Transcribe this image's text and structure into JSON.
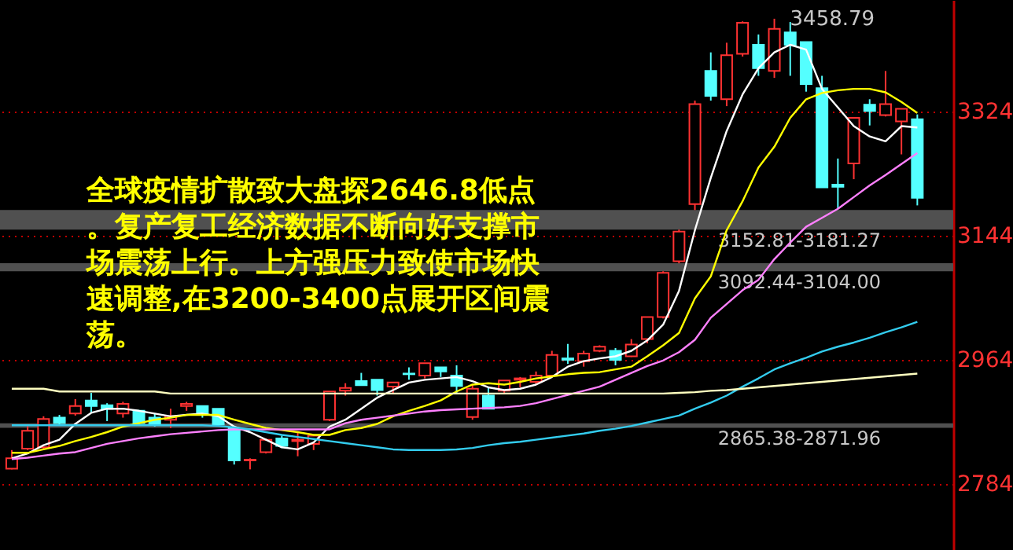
{
  "chart_data": {
    "type": "candlestick",
    "categories": [
      null,
      null,
      null,
      null,
      null,
      null,
      null,
      null,
      null,
      null,
      null,
      null,
      null,
      null,
      null,
      null,
      null,
      null,
      null,
      null,
      null,
      null,
      null,
      null,
      null,
      null,
      null,
      null,
      null,
      null,
      null,
      null,
      null,
      null,
      null,
      null,
      null,
      null,
      null,
      null,
      null,
      null,
      null,
      null,
      null,
      null,
      null,
      null,
      null,
      null,
      null,
      null,
      null,
      null,
      null,
      null,
      null,
      null
    ],
    "ohlc": [
      [
        2806,
        2833,
        2805,
        2821
      ],
      [
        2835,
        2868,
        2833,
        2861
      ],
      [
        2837,
        2882,
        2834,
        2878
      ],
      [
        2880,
        2884,
        2869,
        2872
      ],
      [
        2886,
        2907,
        2883,
        2897
      ],
      [
        2905,
        2916,
        2887,
        2897
      ],
      [
        2898,
        2901,
        2875,
        2893
      ],
      [
        2886,
        2903,
        2880,
        2900
      ],
      [
        2890,
        2890,
        2869,
        2872
      ],
      [
        2880,
        2886,
        2867,
        2871
      ],
      [
        2877,
        2893,
        2865,
        2882
      ],
      [
        2897,
        2903,
        2890,
        2900
      ],
      [
        2897,
        2897,
        2880,
        2886
      ],
      [
        2893,
        2893,
        2867,
        2870
      ],
      [
        2865,
        2867,
        2812,
        2818
      ],
      [
        2818,
        2821,
        2805,
        2819
      ],
      [
        2830,
        2850,
        2828,
        2848
      ],
      [
        2850,
        2854,
        2836,
        2839
      ],
      [
        2846,
        2859,
        2824,
        2848
      ],
      [
        2842,
        2854,
        2833,
        2854
      ],
      [
        2877,
        2918,
        2875,
        2918
      ],
      [
        2919,
        2930,
        2912,
        2923
      ],
      [
        2933,
        2945,
        2927,
        2927
      ],
      [
        2935,
        2935,
        2912,
        2920
      ],
      [
        2925,
        2931,
        2915,
        2931
      ],
      [
        2944,
        2953,
        2935,
        2943
      ],
      [
        2941,
        2959,
        2937,
        2959
      ],
      [
        2953,
        2953,
        2939,
        2947
      ],
      [
        2941,
        2956,
        2916,
        2926
      ],
      [
        2881,
        2928,
        2877,
        2922
      ],
      [
        2912,
        2925,
        2893,
        2893
      ],
      [
        2919,
        2934,
        2915,
        2934
      ],
      [
        2935,
        2939,
        2924,
        2937
      ],
      [
        2932,
        2947,
        2928,
        2941
      ],
      [
        2941,
        2977,
        2939,
        2971
      ],
      [
        2966,
        2987,
        2958,
        2964
      ],
      [
        2962,
        2977,
        2954,
        2973
      ],
      [
        2977,
        2985,
        2975,
        2983
      ],
      [
        2977,
        2981,
        2956,
        2964
      ],
      [
        2969,
        2994,
        2968,
        2986
      ],
      [
        2994,
        3026,
        2988,
        3026
      ],
      [
        3026,
        3092.44,
        3024,
        3090
      ],
      [
        3107,
        3152.81,
        3104,
        3150
      ],
      [
        3190,
        3340,
        3181.27,
        3335
      ],
      [
        3383,
        3410,
        3340,
        3347
      ],
      [
        3342,
        3424,
        3332,
        3406
      ],
      [
        3408,
        3455,
        3404,
        3453
      ],
      [
        3421,
        3436,
        3376,
        3387
      ],
      [
        3383,
        3458.79,
        3373,
        3444
      ],
      [
        3439,
        3454,
        3376,
        3421
      ],
      [
        3425,
        3425,
        3353,
        3364
      ],
      [
        3358,
        3376,
        3214,
        3214
      ],
      [
        3218,
        3256,
        3183,
        3215
      ],
      [
        3249,
        3315,
        3226,
        3315
      ],
      [
        3334,
        3342,
        3304,
        3325
      ],
      [
        3319,
        3383,
        3317,
        3335
      ],
      [
        3310,
        3328,
        3262,
        3328
      ],
      [
        3313,
        3320,
        3188,
        3199
      ]
    ],
    "colors": [
      "#ff3232",
      "#ff3232",
      "#ff3232",
      "#54ffff",
      "#ff3232",
      "#54ffff",
      "#54ffff",
      "#ff3232",
      "#54ffff",
      "#54ffff",
      "#ff3232",
      "#ff3232",
      "#54ffff",
      "#54ffff",
      "#54ffff",
      "#ff3232",
      "#ff3232",
      "#54ffff",
      "#ff3232",
      "#ff3232",
      "#ff3232",
      "#ff3232",
      "#54ffff",
      "#54ffff",
      "#ff3232",
      "#54ffff",
      "#ff3232",
      "#54ffff",
      "#54ffff",
      "#ff3232",
      "#54ffff",
      "#ff3232",
      "#ff3232",
      "#ff3232",
      "#ff3232",
      "#54ffff",
      "#ff3232",
      "#ff3232",
      "#54ffff",
      "#ff3232",
      "#ff3232",
      "#ff3232",
      "#ff3232",
      "#ff3232",
      "#54ffff",
      "#ff3232",
      "#ff3232",
      "#54ffff",
      "#ff3232",
      "#54ffff",
      "#54ffff",
      "#54ffff",
      "#54ffff",
      "#ff3232",
      "#54ffff",
      "#ff3232",
      "#ff3232",
      "#54ffff"
    ],
    "series": [
      {
        "type": "line",
        "color": "#ffffff",
        "values": [
          2821,
          2828,
          2840,
          2848,
          2871,
          2887,
          2893,
          2893,
          2890,
          2886,
          2882,
          2884,
          2886,
          2882,
          2867,
          2859,
          2848,
          2837,
          2834,
          2844,
          2867,
          2877,
          2893,
          2909,
          2920,
          2931,
          2935,
          2937,
          2939,
          2933,
          2924,
          2920,
          2922,
          2928,
          2939,
          2954,
          2962,
          2966,
          2969,
          2977,
          2992,
          3015,
          3064,
          3152,
          3228,
          3296,
          3349,
          3387,
          3410,
          3421,
          3414,
          3357,
          3330,
          3303,
          3288,
          3281,
          3303,
          3301
        ]
      },
      {
        "type": "line",
        "color": "#ffff00",
        "values": [
          2829,
          2829,
          2834,
          2839,
          2846,
          2852,
          2859,
          2867,
          2872,
          2877,
          2880,
          2884,
          2884,
          2884,
          2877,
          2871,
          2865,
          2862,
          2859,
          2855,
          2855,
          2862,
          2865,
          2871,
          2882,
          2890,
          2897,
          2905,
          2918,
          2928,
          2930,
          2928,
          2932,
          2937,
          2940,
          2943,
          2945,
          2946,
          2950,
          2954,
          2969,
          2985,
          3003,
          3053,
          3085,
          3152,
          3194,
          3243,
          3273,
          3315,
          3342,
          3351,
          3355,
          3357,
          3357,
          3352,
          3338,
          3322
        ]
      },
      {
        "type": "line",
        "color": "#ff80ff",
        "values": [
          2820,
          2822,
          2825,
          2828,
          2830,
          2836,
          2842,
          2846,
          2850,
          2853,
          2856,
          2858,
          2860,
          2862,
          2863,
          2863,
          2863,
          2863,
          2863,
          2863,
          2863,
          2872,
          2877,
          2880,
          2883,
          2886,
          2889,
          2891,
          2892,
          2893,
          2894,
          2895,
          2897,
          2901,
          2907,
          2913,
          2919,
          2925,
          2935,
          2945,
          2955,
          2963,
          2975,
          2993,
          3025,
          3045,
          3065,
          3080,
          3110,
          3134,
          3157,
          3170,
          3183,
          3200,
          3217,
          3232,
          3248,
          3264
        ]
      },
      {
        "type": "line",
        "color": "#33ccee",
        "values": [
          2869,
          2869,
          2869,
          2869,
          2869,
          2869,
          2869,
          2869,
          2869,
          2869,
          2869,
          2869,
          2869,
          2868,
          2866,
          2863,
          2859,
          2855,
          2852,
          2849,
          2846,
          2843,
          2840,
          2837,
          2834,
          2833,
          2833,
          2833,
          2834,
          2836,
          2840,
          2843,
          2845,
          2848,
          2851,
          2854,
          2857,
          2861,
          2864,
          2868,
          2873,
          2878,
          2883,
          2893,
          2902,
          2912,
          2925,
          2937,
          2950,
          2959,
          2967,
          2976,
          2983,
          2989,
          2996,
          3004,
          3011,
          3019
        ]
      },
      {
        "type": "line",
        "color": "#ffffc0",
        "values": [
          2922,
          2922,
          2922,
          2918,
          2918,
          2918,
          2918,
          2918,
          2918,
          2918,
          2915,
          2915,
          2915,
          2915,
          2915,
          2915,
          2915,
          2915,
          2915,
          2915,
          2915,
          2915,
          2915,
          2915,
          2915,
          2915,
          2915,
          2915,
          2915,
          2915,
          2915,
          2915,
          2915,
          2915,
          2915,
          2915,
          2915,
          2915,
          2915,
          2915,
          2915,
          2915,
          2916,
          2917,
          2919,
          2920,
          2922,
          2924,
          2926,
          2928,
          2930,
          2932,
          2934,
          2936,
          2938,
          2940,
          2942,
          2944
        ]
      }
    ],
    "ylim": [
      2688,
      3486
    ],
    "yticks": [
      2784,
      2964,
      3144,
      3324
    ],
    "grid": "y",
    "marker": "none",
    "bands": [
      {
        "axis": "y",
        "from": 3152.81,
        "to": 3181.27,
        "label": "3152.81-3181.27",
        "color": "#505050"
      },
      {
        "axis": "y",
        "from": 3092.44,
        "to": 3104.0,
        "label": "3092.44-3104.00",
        "color": "#505050"
      },
      {
        "axis": "y",
        "from": 2865.38,
        "to": 2871.96,
        "label": "2865.38-2871.96",
        "color": "#505050"
      }
    ],
    "annotations": [
      "全球疫情扩散致大盘探2646.8低点。复产复工经济数据不断向好支撑市场震荡上行。上方强压力致使市场快速调整,在3200-3400点展开区间震荡。",
      "3458.79"
    ]
  }
}
